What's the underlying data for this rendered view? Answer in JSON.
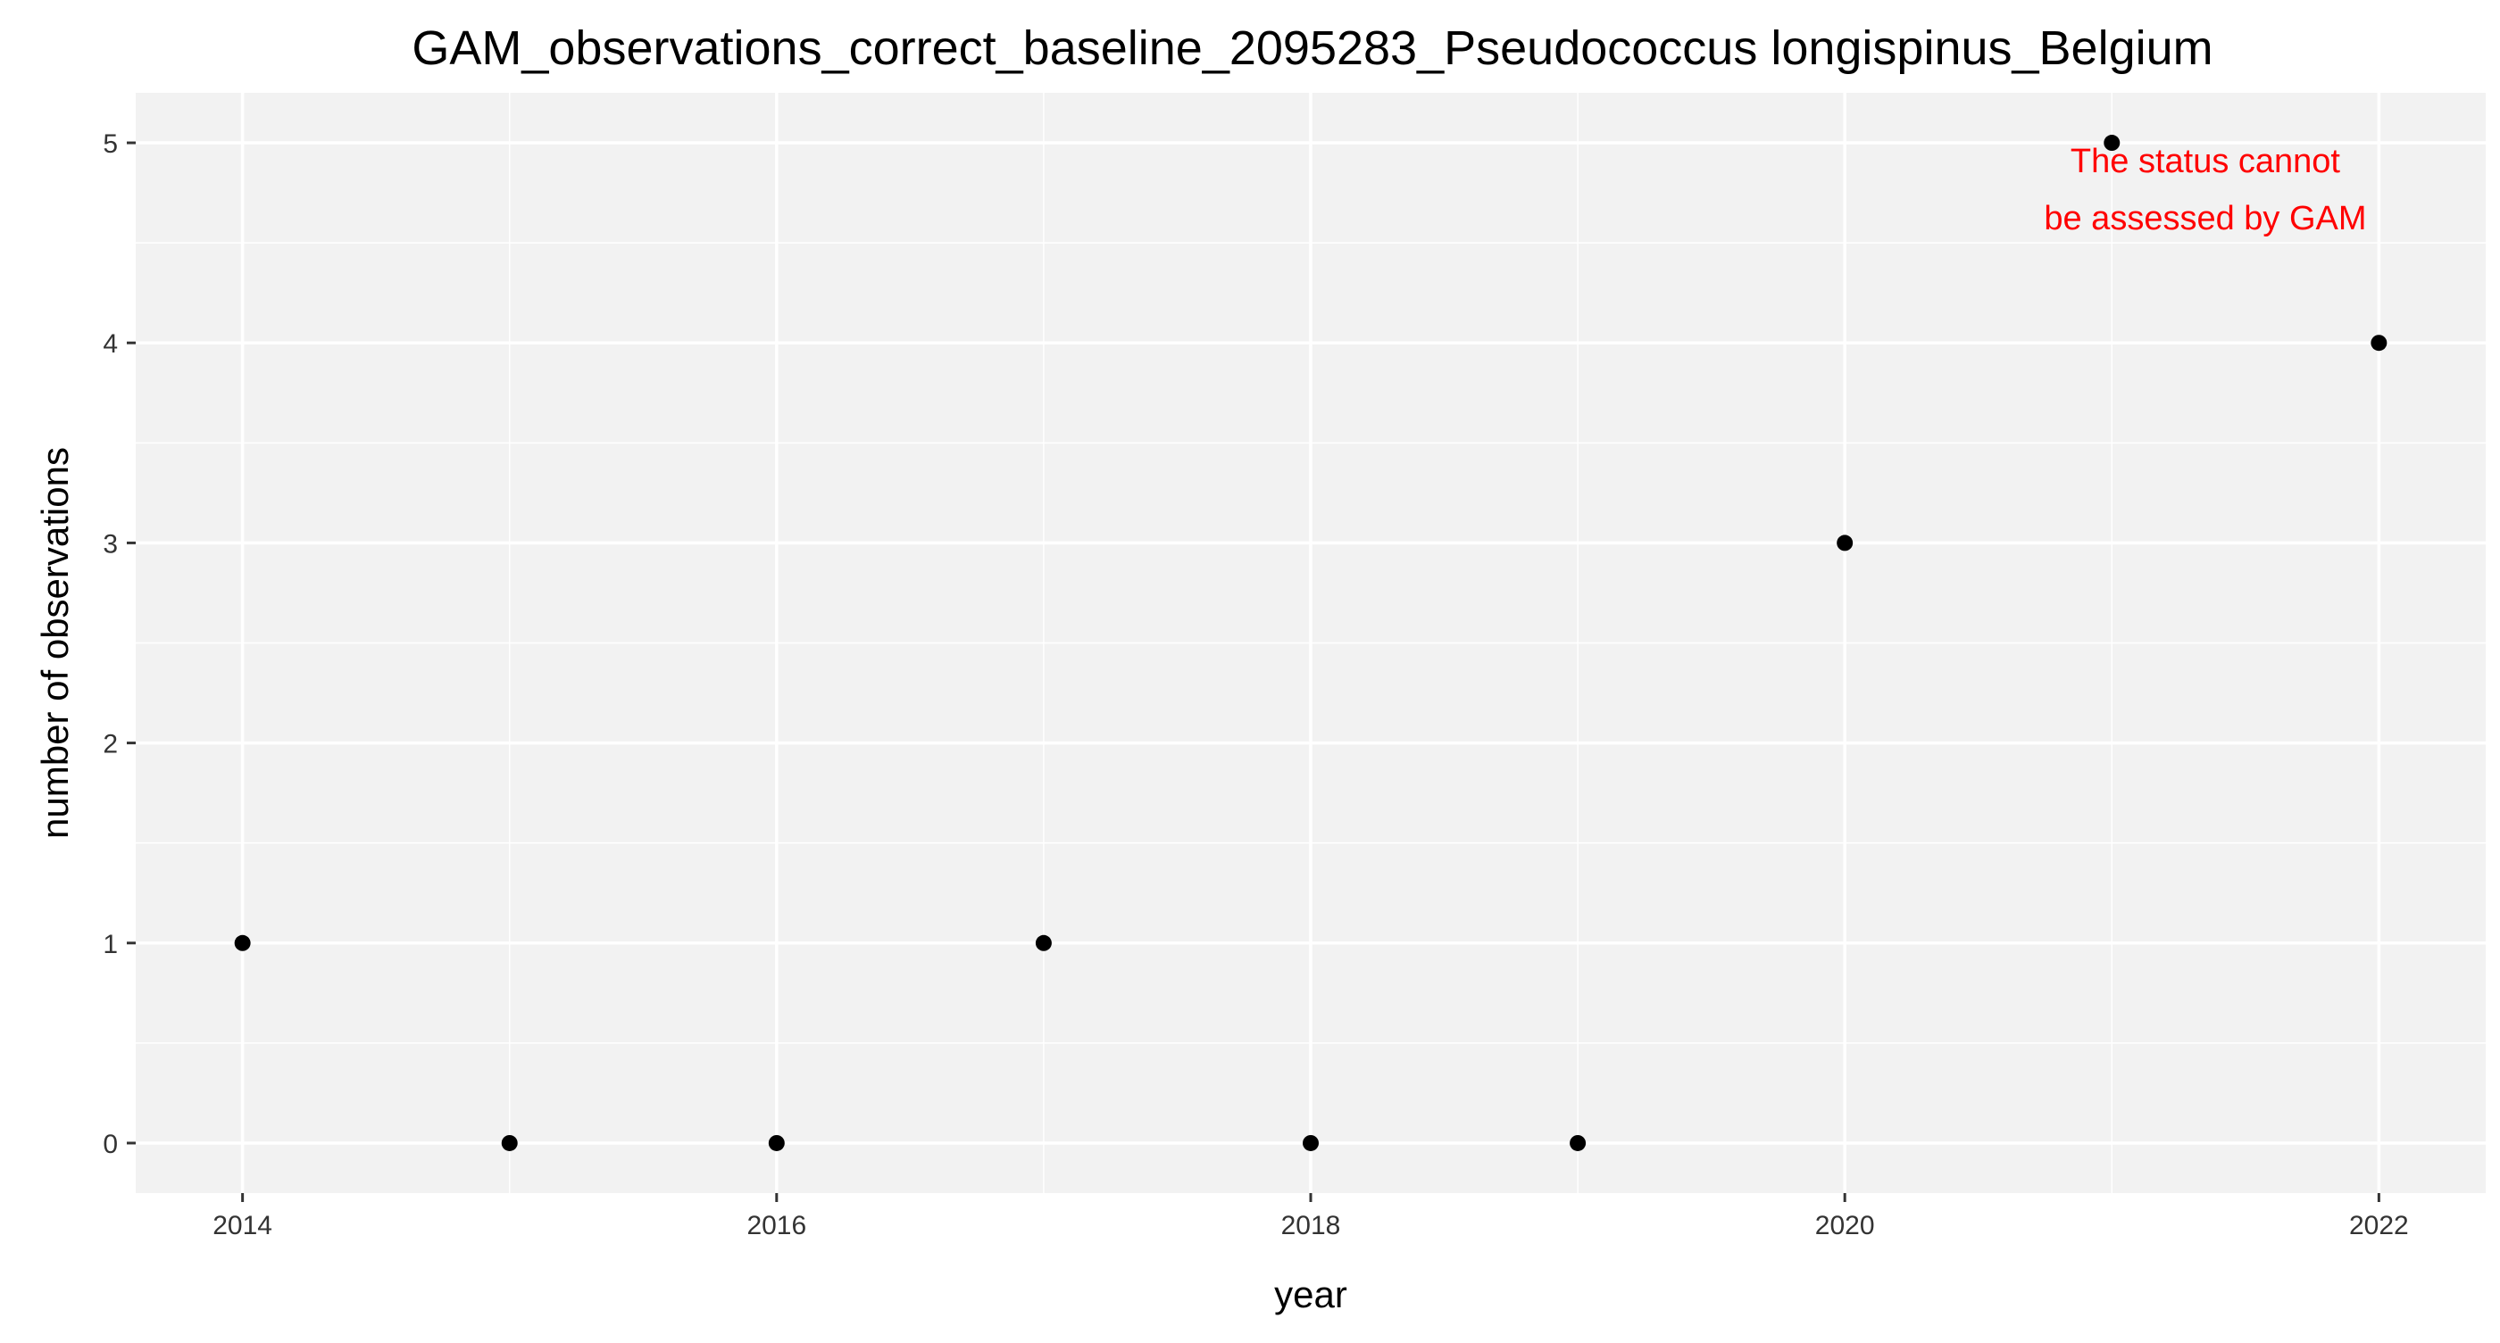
{
  "chart_data": {
    "type": "scatter",
    "title": "GAM_observations_correct_baseline_2095283_Pseudococcus longispinus_Belgium",
    "xlabel": "year",
    "ylabel": "number of observations",
    "x": [
      2014,
      2015,
      2016,
      2017,
      2018,
      2019,
      2020,
      2021,
      2022
    ],
    "series": [
      {
        "values": [
          1,
          0,
          0,
          1,
          0,
          0,
          3,
          5,
          4
        ]
      }
    ],
    "xlim": [
      2013.6,
      2022.4
    ],
    "ylim": [
      -0.25,
      5.25
    ],
    "x_ticks": [
      2014,
      2016,
      2018,
      2020,
      2022
    ],
    "y_ticks": [
      0,
      1,
      2,
      3,
      4,
      5
    ],
    "grid": true,
    "annotation": {
      "lines": [
        "The status cannot",
        "be assessed by GAM"
      ],
      "color": "#ff0000",
      "anchor_x": 2021.35,
      "anchor_y": 4.62
    },
    "colors": {
      "panel": "#f2f2f2",
      "grid": "#ffffff",
      "point": "#000000"
    }
  }
}
